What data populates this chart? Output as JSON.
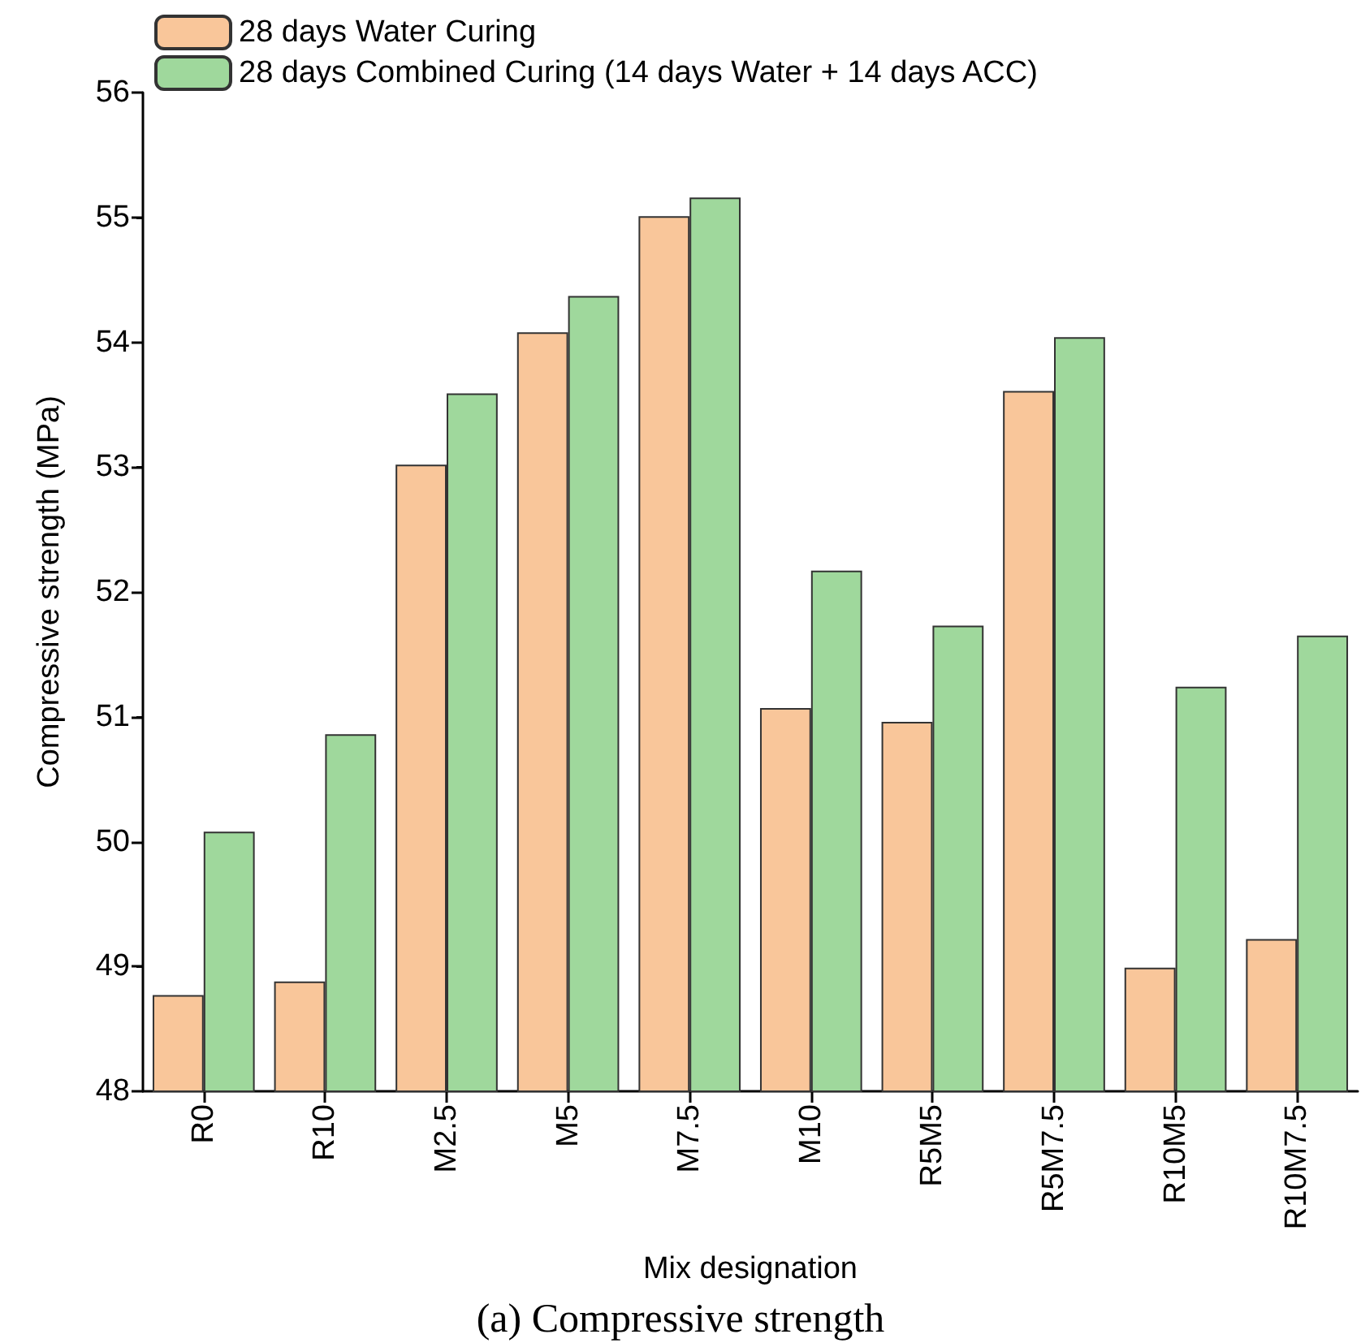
{
  "chart_data": {
    "type": "bar",
    "xlabel": "Mix designation",
    "ylabel": "Compressive strength (MPa)",
    "annotations": [
      "(a) Compressive strength"
    ],
    "categories": [
      "R0",
      "R10",
      "M2.5",
      "M5",
      "M7.5",
      "M10",
      "R5M5",
      "R5M7.5",
      "R10M5",
      "R10M7.5"
    ],
    "series": [
      {
        "name": "28 days Water Curing",
        "color": "#f9c69a",
        "values": [
          48.77,
          48.88,
          53.02,
          54.08,
          55.01,
          51.07,
          50.96,
          53.61,
          48.99,
          49.22
        ]
      },
      {
        "name": "28 days Combined Curing (14 days Water + 14 days ACC)",
        "color": "#9fd89c",
        "values": [
          50.08,
          50.86,
          53.59,
          54.37,
          55.16,
          52.17,
          51.73,
          54.04,
          51.24,
          51.65
        ]
      }
    ],
    "ylim": [
      48,
      56
    ],
    "yticks": [
      48,
      49,
      50,
      51,
      52,
      53,
      54,
      55,
      56
    ],
    "grid": false,
    "legend": "top left"
  }
}
